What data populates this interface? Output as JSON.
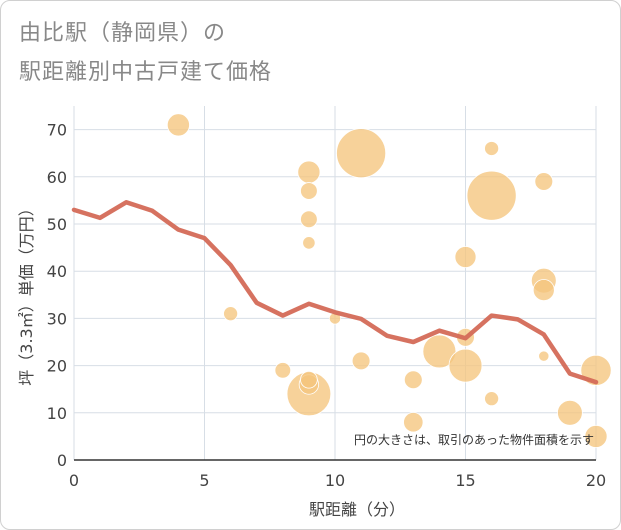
{
  "title": {
    "line1": "由比駅（静岡県）の",
    "line2": "駅距離別中古戸建て価格"
  },
  "chart_data": {
    "type": "scatter",
    "xlabel": "駅距離（分）",
    "ylabel": "坪（3.3㎡）単価（万円）",
    "xlim": [
      0,
      20
    ],
    "ylim": [
      0,
      75
    ],
    "x_ticks": [
      0,
      5,
      10,
      15,
      20
    ],
    "y_ticks": [
      0,
      10,
      20,
      30,
      40,
      50,
      60,
      70
    ],
    "grid": true,
    "note": "円の大きさは、取引のあった物件面積を示す",
    "colors": {
      "bubble": "#f5c57e",
      "line": "#d46a57"
    },
    "bubbles": [
      {
        "x": 4,
        "y": 71,
        "size": 3
      },
      {
        "x": 6,
        "y": 31,
        "size": 1.5
      },
      {
        "x": 8,
        "y": 19,
        "size": 1.8
      },
      {
        "x": 9,
        "y": 61,
        "size": 3
      },
      {
        "x": 9,
        "y": 57,
        "size": 2
      },
      {
        "x": 9,
        "y": 51,
        "size": 2
      },
      {
        "x": 9,
        "y": 46,
        "size": 1.2
      },
      {
        "x": 9,
        "y": 17,
        "size": 2
      },
      {
        "x": 9,
        "y": 16,
        "size": 2.5
      },
      {
        "x": 9,
        "y": 14,
        "size": 7
      },
      {
        "x": 10,
        "y": 30,
        "size": 1
      },
      {
        "x": 11,
        "y": 65,
        "size": 8
      },
      {
        "x": 11,
        "y": 21,
        "size": 2.2
      },
      {
        "x": 13,
        "y": 17,
        "size": 2.2
      },
      {
        "x": 13,
        "y": 8,
        "size": 2.5
      },
      {
        "x": 14,
        "y": 23,
        "size": 5
      },
      {
        "x": 15,
        "y": 43,
        "size": 2.8
      },
      {
        "x": 15,
        "y": 26,
        "size": 2.2
      },
      {
        "x": 15,
        "y": 20,
        "size": 5
      },
      {
        "x": 16,
        "y": 66,
        "size": 1.5
      },
      {
        "x": 16,
        "y": 56,
        "size": 8
      },
      {
        "x": 16,
        "y": 13,
        "size": 1.5
      },
      {
        "x": 18,
        "y": 59,
        "size": 2.2
      },
      {
        "x": 18,
        "y": 38,
        "size": 3.5
      },
      {
        "x": 18,
        "y": 36,
        "size": 2.8
      },
      {
        "x": 18,
        "y": 22,
        "size": 0.8
      },
      {
        "x": 19,
        "y": 10,
        "size": 3.5
      },
      {
        "x": 20,
        "y": 19,
        "size": 4.5
      },
      {
        "x": 20,
        "y": 5,
        "size": 3
      }
    ],
    "trend": {
      "x": [
        0,
        1,
        2,
        3,
        4,
        5,
        6,
        7,
        8,
        9,
        10,
        11,
        12,
        13,
        14,
        15,
        16,
        17,
        18,
        19,
        20
      ],
      "y": [
        53,
        51.3,
        54.6,
        52.8,
        48.8,
        47,
        41.3,
        33.3,
        30.6,
        33.1,
        31.3,
        29.9,
        26.3,
        25,
        27.4,
        25.8,
        30.6,
        29.8,
        26.6,
        18.3,
        16.5
      ]
    }
  }
}
